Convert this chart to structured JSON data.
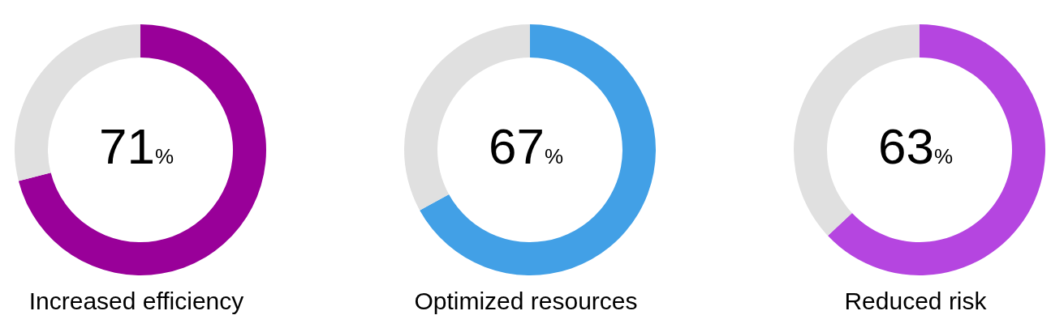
{
  "chart_data": [
    {
      "type": "donut",
      "title": "Increased efficiency",
      "categories": [
        null,
        null
      ],
      "values": [
        71,
        29
      ],
      "colors": [
        "#990099",
        "#e0e0e0"
      ],
      "annotations": [
        "71%"
      ]
    },
    {
      "type": "donut",
      "title": "Optimized resources",
      "categories": [
        null,
        null
      ],
      "values": [
        67,
        33
      ],
      "colors": [
        "#42a0e6",
        "#e0e0e0"
      ],
      "annotations": [
        "67%"
      ]
    },
    {
      "type": "donut",
      "title": "Reduced risk",
      "categories": [
        null,
        null
      ],
      "values": [
        63,
        37
      ],
      "colors": [
        "#b545e0",
        "#e0e0e0"
      ],
      "annotations": [
        "63%"
      ]
    }
  ]
}
